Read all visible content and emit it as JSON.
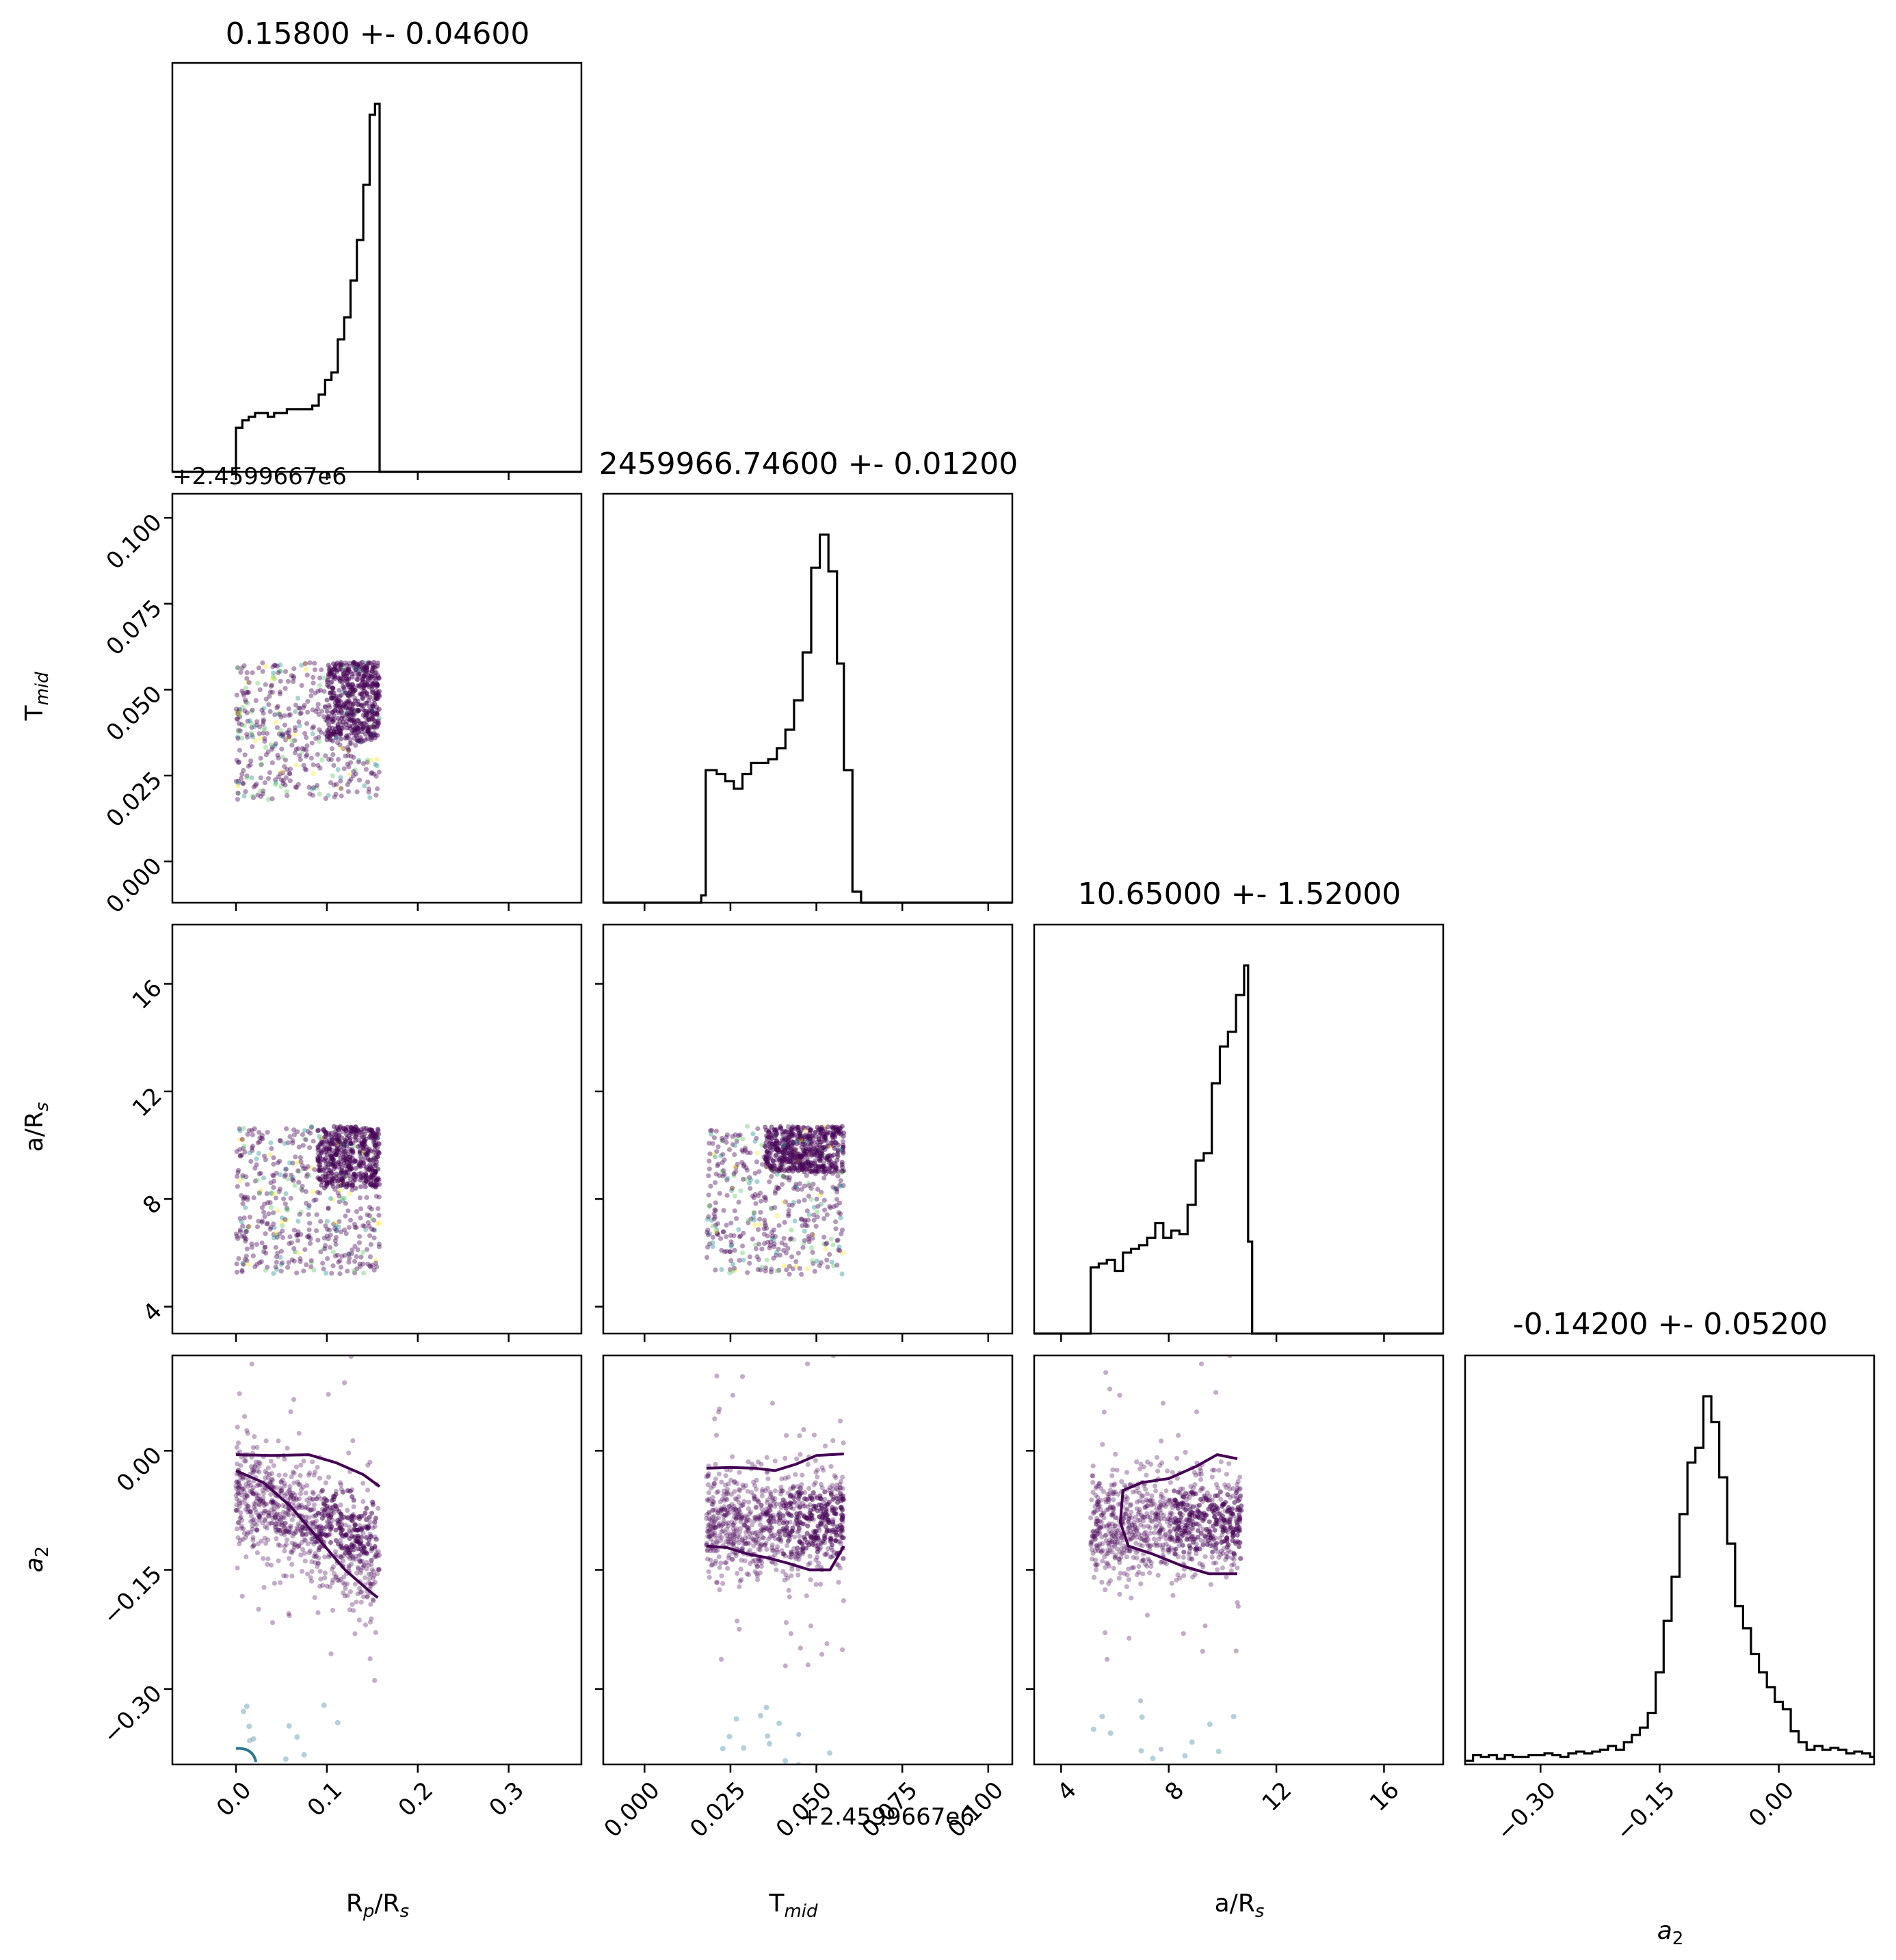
{
  "chart_data": {
    "type": "scatter",
    "variant": "corner-plot",
    "parameters": [
      {
        "key": "rp",
        "title": "0.15800 +- 0.04600",
        "label": "R",
        "label_sub": "p",
        "label_tail": "/R",
        "label_sub2": "s",
        "range": [
          -0.07,
          0.38
        ],
        "ticks": [
          0.0,
          0.1,
          0.2,
          0.3
        ],
        "tick_labels": [
          "0.0",
          "0.1",
          "0.2",
          "0.3"
        ],
        "offset_label": ""
      },
      {
        "key": "tmid",
        "title": "2459966.74600 +- 0.01200",
        "label": "T",
        "label_sub": "mid",
        "label_tail": "",
        "label_sub2": "",
        "range": [
          -0.012,
          0.107
        ],
        "ticks": [
          0.0,
          0.025,
          0.05,
          0.075,
          0.1
        ],
        "tick_labels": [
          "0.000",
          "0.025",
          "0.050",
          "0.075",
          "0.100"
        ],
        "offset_label": "+2.4599667e6"
      },
      {
        "key": "ars",
        "title": "10.65000 +- 1.52000",
        "label": "a/R",
        "label_sub": "s",
        "label_tail": "",
        "label_sub2": "",
        "range": [
          3.0,
          18.2
        ],
        "ticks": [
          4,
          8,
          12,
          16
        ],
        "tick_labels": [
          "4",
          "8",
          "12",
          "16"
        ],
        "offset_label": ""
      },
      {
        "key": "a2",
        "title": "-0.14200 +- 0.05200",
        "label": "a",
        "label_sub": "2",
        "label_tail": "",
        "label_sub2": "",
        "label_italic": true,
        "range": [
          -0.395,
          0.12
        ],
        "ticks": [
          -0.3,
          -0.15,
          0.0
        ],
        "tick_labels": [
          "−0.30",
          "−0.15",
          "0.00"
        ],
        "offset_label": ""
      }
    ],
    "histograms": [
      {
        "param": "rp",
        "bins": [
          [
            -0.07,
            0
          ],
          [
            -0.005,
            0
          ],
          [
            0.0,
            0.12
          ],
          [
            0.007,
            0.14
          ],
          [
            0.014,
            0.15
          ],
          [
            0.021,
            0.16
          ],
          [
            0.028,
            0.16
          ],
          [
            0.035,
            0.15
          ],
          [
            0.042,
            0.16
          ],
          [
            0.049,
            0.16
          ],
          [
            0.056,
            0.17
          ],
          [
            0.063,
            0.17
          ],
          [
            0.07,
            0.17
          ],
          [
            0.077,
            0.17
          ],
          [
            0.084,
            0.18
          ],
          [
            0.091,
            0.21
          ],
          [
            0.098,
            0.25
          ],
          [
            0.105,
            0.27
          ],
          [
            0.112,
            0.36
          ],
          [
            0.119,
            0.42
          ],
          [
            0.126,
            0.52
          ],
          [
            0.133,
            0.63
          ],
          [
            0.14,
            0.78
          ],
          [
            0.147,
            0.97
          ],
          [
            0.153,
            1.0
          ],
          [
            0.158,
            0
          ],
          [
            0.38,
            0
          ]
        ]
      },
      {
        "param": "tmid",
        "bins": [
          [
            -0.012,
            0
          ],
          [
            0.0165,
            0.02
          ],
          [
            0.0178,
            0.36
          ],
          [
            0.021,
            0.35
          ],
          [
            0.0235,
            0.33
          ],
          [
            0.026,
            0.31
          ],
          [
            0.0285,
            0.35
          ],
          [
            0.031,
            0.38
          ],
          [
            0.0335,
            0.38
          ],
          [
            0.036,
            0.39
          ],
          [
            0.0385,
            0.42
          ],
          [
            0.041,
            0.47
          ],
          [
            0.0435,
            0.55
          ],
          [
            0.046,
            0.68
          ],
          [
            0.0485,
            0.91
          ],
          [
            0.051,
            1.0
          ],
          [
            0.0535,
            0.9
          ],
          [
            0.056,
            0.65
          ],
          [
            0.058,
            0.36
          ],
          [
            0.0605,
            0.03
          ],
          [
            0.063,
            0
          ],
          [
            0.107,
            0
          ]
        ]
      },
      {
        "param": "ars",
        "bins": [
          [
            3.0,
            0
          ],
          [
            5.1,
            0.18
          ],
          [
            5.4,
            0.19
          ],
          [
            5.7,
            0.2
          ],
          [
            6.0,
            0.17
          ],
          [
            6.3,
            0.22
          ],
          [
            6.6,
            0.23
          ],
          [
            6.9,
            0.24
          ],
          [
            7.2,
            0.26
          ],
          [
            7.5,
            0.3
          ],
          [
            7.8,
            0.26
          ],
          [
            8.1,
            0.28
          ],
          [
            8.4,
            0.27
          ],
          [
            8.7,
            0.35
          ],
          [
            9.0,
            0.47
          ],
          [
            9.3,
            0.49
          ],
          [
            9.6,
            0.68
          ],
          [
            9.9,
            0.78
          ],
          [
            10.2,
            0.82
          ],
          [
            10.5,
            0.92
          ],
          [
            10.8,
            1.0
          ],
          [
            10.95,
            0.25
          ],
          [
            11.1,
            0
          ],
          [
            18.2,
            0
          ]
        ]
      },
      {
        "param": "a2",
        "bins": [
          [
            -0.395,
            0.01
          ],
          [
            -0.385,
            0.025
          ],
          [
            -0.375,
            0.02
          ],
          [
            -0.365,
            0.025
          ],
          [
            -0.355,
            0.015
          ],
          [
            -0.345,
            0.025
          ],
          [
            -0.335,
            0.02
          ],
          [
            -0.325,
            0.02
          ],
          [
            -0.315,
            0.025
          ],
          [
            -0.305,
            0.025
          ],
          [
            -0.295,
            0.03
          ],
          [
            -0.285,
            0.025
          ],
          [
            -0.275,
            0.02
          ],
          [
            -0.265,
            0.03
          ],
          [
            -0.255,
            0.035
          ],
          [
            -0.245,
            0.03
          ],
          [
            -0.235,
            0.035
          ],
          [
            -0.225,
            0.04
          ],
          [
            -0.215,
            0.05
          ],
          [
            -0.205,
            0.04
          ],
          [
            -0.195,
            0.06
          ],
          [
            -0.185,
            0.08
          ],
          [
            -0.175,
            0.1
          ],
          [
            -0.165,
            0.14
          ],
          [
            -0.155,
            0.25
          ],
          [
            -0.145,
            0.39
          ],
          [
            -0.135,
            0.51
          ],
          [
            -0.125,
            0.68
          ],
          [
            -0.115,
            0.82
          ],
          [
            -0.105,
            0.86
          ],
          [
            -0.095,
            1.0
          ],
          [
            -0.085,
            0.93
          ],
          [
            -0.075,
            0.78
          ],
          [
            -0.065,
            0.6
          ],
          [
            -0.055,
            0.43
          ],
          [
            -0.045,
            0.37
          ],
          [
            -0.035,
            0.3
          ],
          [
            -0.025,
            0.25
          ],
          [
            -0.015,
            0.21
          ],
          [
            -0.005,
            0.17
          ],
          [
            0.005,
            0.15
          ],
          [
            0.015,
            0.09
          ],
          [
            0.025,
            0.06
          ],
          [
            0.035,
            0.04
          ],
          [
            0.045,
            0.05
          ],
          [
            0.055,
            0.04
          ],
          [
            0.065,
            0.045
          ],
          [
            0.075,
            0.04
          ],
          [
            0.085,
            0.03
          ],
          [
            0.095,
            0.035
          ],
          [
            0.105,
            0.03
          ],
          [
            0.115,
            0.02
          ]
        ]
      }
    ],
    "scatter_panels": [
      {
        "x": "rp",
        "y": "tmid",
        "x_range": [
          0.0,
          0.158
        ],
        "y_range": [
          0.018,
          0.058
        ],
        "dense_x": [
          0.1,
          0.158
        ],
        "dense_y": [
          0.035,
          0.058
        ]
      },
      {
        "x": "rp",
        "y": "ars",
        "x_range": [
          0.0,
          0.158
        ],
        "y_range": [
          5.2,
          10.7
        ],
        "dense_x": [
          0.09,
          0.158
        ],
        "dense_y": [
          8.4,
          10.7
        ]
      },
      {
        "x": "tmid",
        "y": "ars",
        "x_range": [
          0.018,
          0.058
        ],
        "y_range": [
          5.2,
          10.7
        ],
        "dense_x": [
          0.035,
          0.058
        ],
        "dense_y": [
          9.0,
          10.7
        ]
      },
      {
        "x": "rp",
        "y": "a2",
        "x_range": [
          0.0,
          0.158
        ],
        "y_range": [
          -0.395,
          0.12
        ],
        "center_y": -0.09,
        "spread_y": 0.055
      },
      {
        "x": "tmid",
        "y": "a2",
        "x_range": [
          0.018,
          0.058
        ],
        "y_range": [
          -0.395,
          0.12
        ],
        "center_y": -0.09,
        "spread_y": 0.055
      },
      {
        "x": "ars",
        "y": "a2",
        "x_range": [
          5.1,
          10.7
        ],
        "y_range": [
          -0.395,
          0.12
        ],
        "center_y": -0.09,
        "spread_y": 0.055
      }
    ],
    "contours": [
      {
        "x": "rp",
        "y": "a2",
        "lines": [
          [
            [
              0.0,
              -0.005
            ],
            [
              0.04,
              -0.006
            ],
            [
              0.08,
              -0.005
            ],
            [
              0.11,
              -0.015
            ],
            [
              0.14,
              -0.03
            ],
            [
              0.158,
              -0.045
            ]
          ],
          [
            [
              0.0,
              -0.025
            ],
            [
              0.03,
              -0.04
            ],
            [
              0.06,
              -0.07
            ],
            [
              0.09,
              -0.11
            ],
            [
              0.12,
              -0.15
            ],
            [
              0.145,
              -0.175
            ],
            [
              0.156,
              -0.185
            ]
          ]
        ]
      },
      {
        "x": "tmid",
        "y": "a2",
        "lines": [
          [
            [
              0.018,
              -0.022
            ],
            [
              0.025,
              -0.021
            ],
            [
              0.032,
              -0.022
            ],
            [
              0.038,
              -0.025
            ],
            [
              0.044,
              -0.017
            ],
            [
              0.05,
              -0.006
            ],
            [
              0.058,
              -0.004
            ]
          ],
          [
            [
              0.018,
              -0.12
            ],
            [
              0.024,
              -0.122
            ],
            [
              0.03,
              -0.13
            ],
            [
              0.036,
              -0.135
            ],
            [
              0.042,
              -0.142
            ],
            [
              0.048,
              -0.15
            ],
            [
              0.054,
              -0.15
            ],
            [
              0.058,
              -0.12
            ]
          ]
        ]
      },
      {
        "x": "ars",
        "y": "a2",
        "lines": [
          [
            [
              10.55,
              -0.01
            ],
            [
              9.8,
              -0.005
            ],
            [
              9.0,
              -0.02
            ],
            [
              8.0,
              -0.035
            ],
            [
              7.0,
              -0.04
            ],
            [
              6.3,
              -0.05
            ],
            [
              6.2,
              -0.09
            ],
            [
              6.5,
              -0.12
            ],
            [
              7.4,
              -0.13
            ],
            [
              8.5,
              -0.145
            ],
            [
              9.5,
              -0.155
            ],
            [
              10.55,
              -0.155
            ]
          ]
        ]
      }
    ],
    "outlier_points_a2": [
      -0.32,
      -0.34,
      -0.36,
      -0.38
    ],
    "colors": {
      "scatter_dense": "#440154",
      "scatter_light": "#3b528b",
      "scatter_accents": [
        "#21918c",
        "#5ec962",
        "#fde725"
      ],
      "contour": "#440154",
      "teal_points": "#2a788e",
      "histogram": "#000000"
    }
  }
}
